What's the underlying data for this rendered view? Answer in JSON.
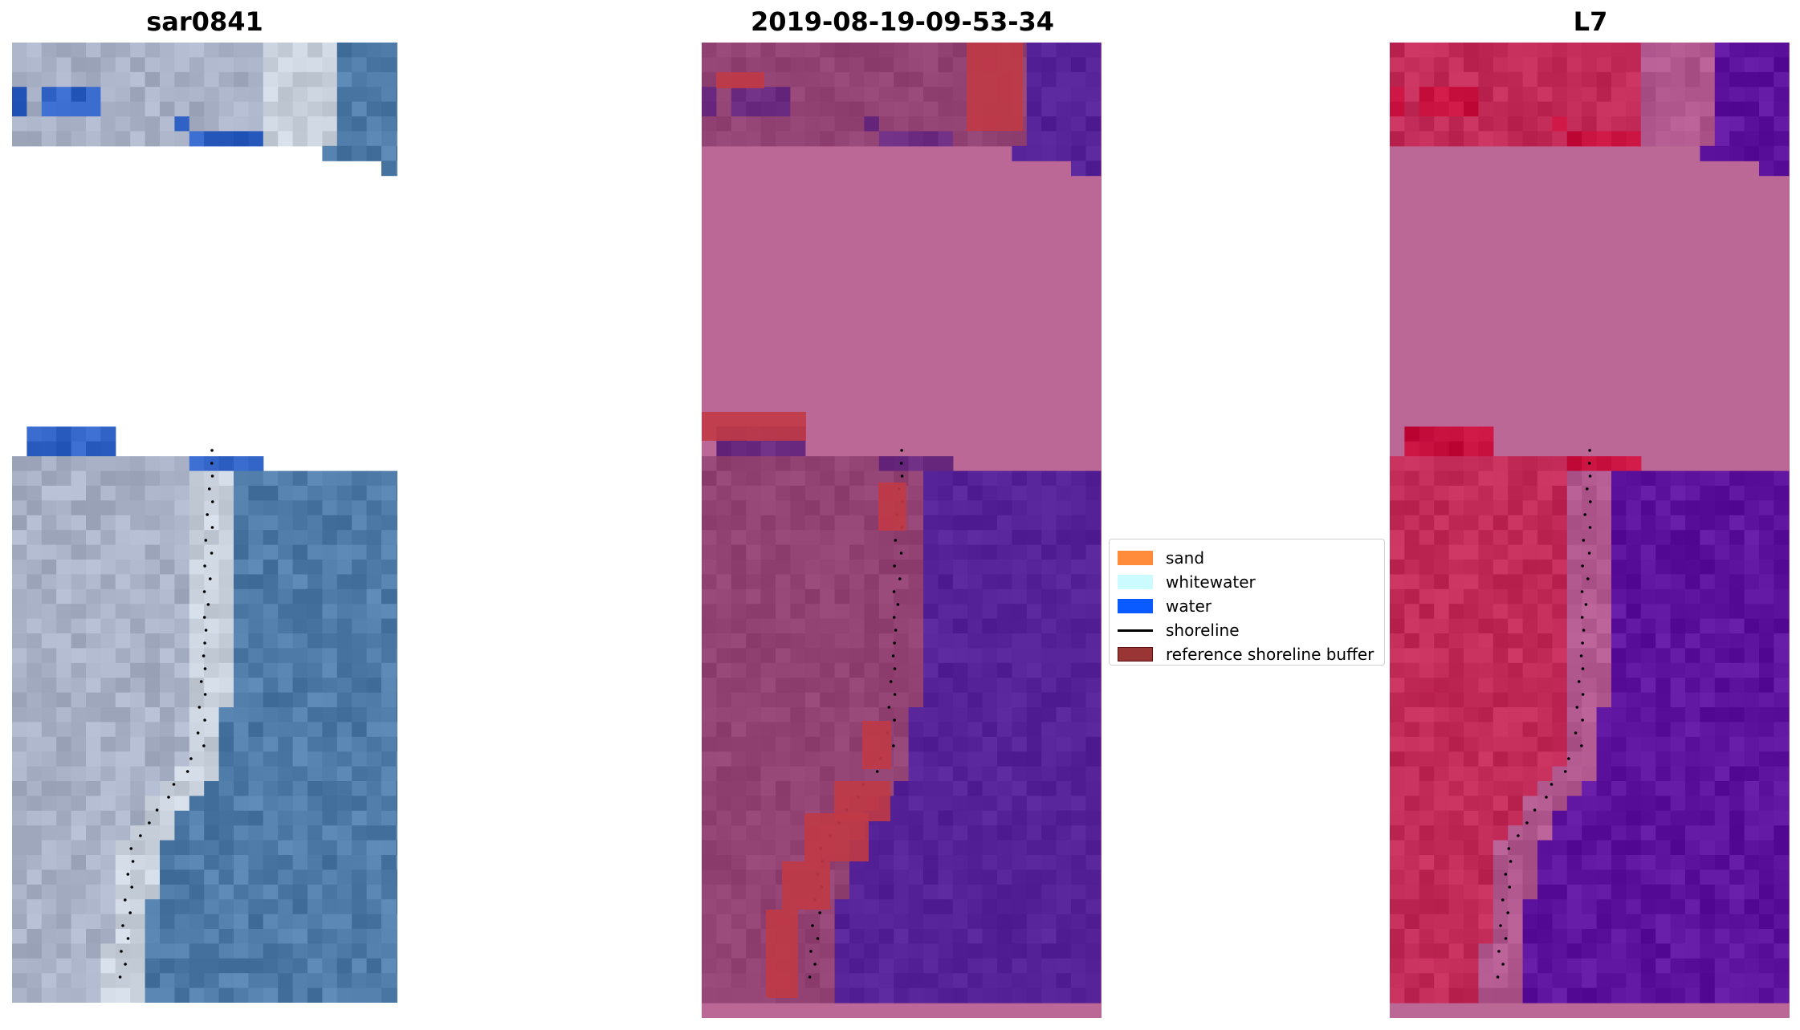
{
  "panels": {
    "left": {
      "title": "sar0841"
    },
    "middle": {
      "title": "2019-08-19-09-53-34"
    },
    "right": {
      "title": "L7"
    }
  },
  "legend": {
    "items": [
      {
        "label": "sand",
        "color": "#ff8c3a",
        "kind": "patch"
      },
      {
        "label": "whitewater",
        "color": "#ccfbff",
        "kind": "patch"
      },
      {
        "label": "water",
        "color": "#0a5bff",
        "kind": "patch"
      },
      {
        "label": "shoreline",
        "color": "#000000",
        "kind": "line"
      },
      {
        "label": "reference shoreline buffer",
        "color": "#9a3535",
        "kind": "patch"
      }
    ]
  },
  "colors": {
    "rgb_water": "#4e7ba8",
    "rgb_land": "#a9b1c6",
    "classified_background": "#bc6896",
    "classified_water": "#552298",
    "classified_land": "#934274",
    "buffer": "#c03a46",
    "false_color_land": "#c22a58",
    "false_color_water": "#5e139e"
  }
}
